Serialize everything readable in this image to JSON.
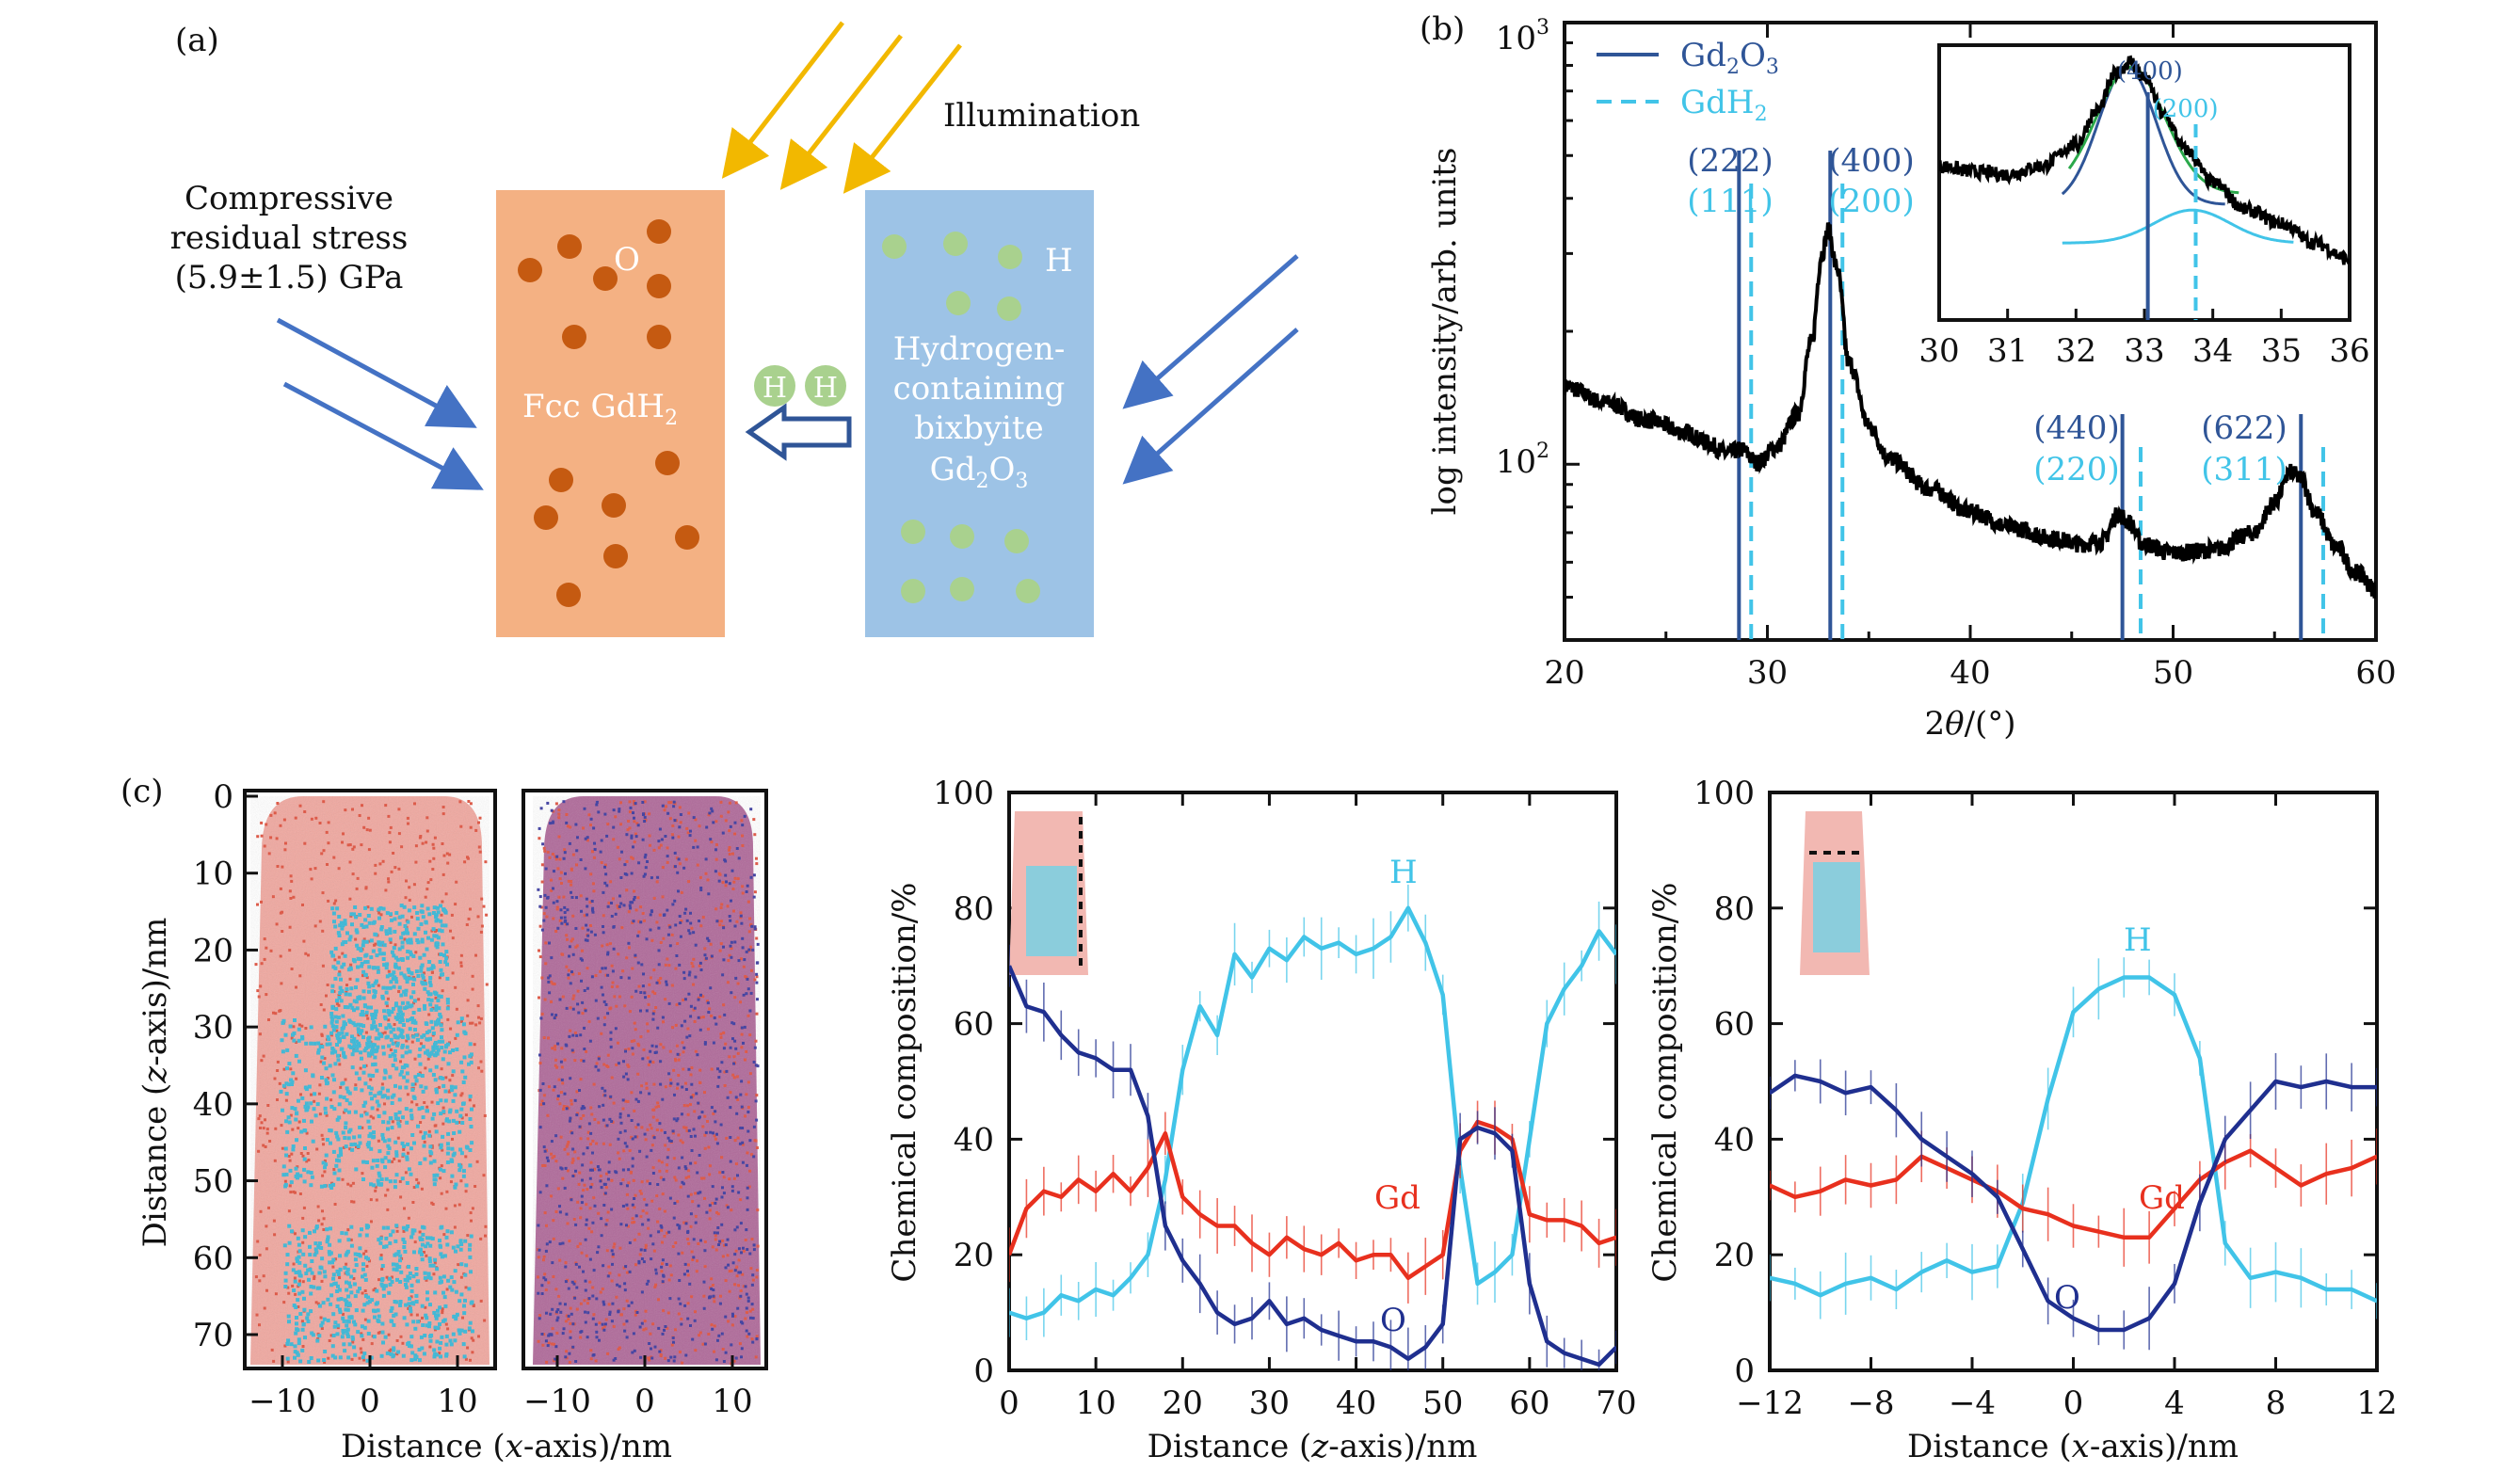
{
  "panel_a": {
    "label": "(a)",
    "illumination": "Illumination",
    "stress_line1": "Compressive",
    "stress_line2": "residual stress",
    "stress_line3": "(5.9±1.5) GPa",
    "left_box_O": "O",
    "left_box_label": "Fcc GdH",
    "left_box_sub": "2",
    "right_box_H": "H",
    "right_box_line1": "Hydrogen-",
    "right_box_line2": "containing",
    "right_box_line3": "bixbyite",
    "right_box_line4_main": "Gd",
    "right_box_line4_sub1": "2",
    "right_box_line4_mid": "O",
    "right_box_line4_sub2": "3",
    "h_atom": "H",
    "colors": {
      "gdh2_box": "#f4b183",
      "gd2o3_box": "#9dc3e6",
      "o_atom": "#c55a11",
      "h_atom": "#a9d18e",
      "arrow_yellow": "#f2b800",
      "arrow_blue": "#4472c4"
    }
  },
  "panel_b": {
    "label": "(b)",
    "legend": [
      {
        "main": "Gd",
        "sub1": "2",
        "mid": "O",
        "sub2": "3",
        "style": "solid",
        "color": "#2f5597"
      },
      {
        "main": "GdH",
        "sub1": "2",
        "mid": "",
        "sub2": "",
        "style": "dashed",
        "color": "#41c4e8"
      }
    ],
    "xlabel_pre": "2",
    "xlabel_theta": "θ",
    "xlabel_post": "/(°)",
    "ylabel": "log intensity/arb. units",
    "ytick_1e3": "10",
    "ytick_1e3_exp": "3",
    "ytick_1e2": "10",
    "ytick_1e2_exp": "2",
    "peaks": [
      {
        "gd2o3": "(222)",
        "gdh2": "(111)"
      },
      {
        "gd2o3": "(400)",
        "gdh2": "(200)"
      },
      {
        "gd2o3": "(440)",
        "gdh2": "(220)"
      },
      {
        "gd2o3": "(622)",
        "gdh2": "(311)"
      }
    ],
    "inset_labels": {
      "gd2o3": "(400)",
      "gdh2": "(200)"
    }
  },
  "panel_c": {
    "label": "(c)",
    "map_ylabel_pre": "Distance (",
    "map_ylabel_axis": "z",
    "map_ylabel_post": "-axis)/nm",
    "map_xlabel_pre": "Distance (",
    "map_xlabel_axis": "x",
    "map_xlabel_post": "-axis)/nm",
    "prof_ylabel": "Chemical composition/%",
    "prof1_xlabel_pre": "Distance (",
    "prof1_xlabel_axis": "z",
    "prof1_xlabel_post": "-axis)/nm",
    "prof2_xlabel_pre": "Distance (",
    "prof2_xlabel_axis": "x",
    "prof2_xlabel_post": "-axis)/nm",
    "label_H": "H",
    "label_Gd": "Gd",
    "label_O": "O",
    "colors": {
      "H": "#41c4e8",
      "Gd": "#e8301e",
      "O": "#1f2f8f"
    }
  },
  "chart_data": [
    {
      "type": "line",
      "id": "xrd",
      "x": [
        20,
        22,
        24,
        26,
        27,
        28,
        28.7,
        29.5,
        30.5,
        31.5,
        32.2,
        32.7,
        33.0,
        33.4,
        34.0,
        35,
        36,
        38,
        40,
        42,
        44,
        45.5,
        46.5,
        47.3,
        47.8,
        48.5,
        50,
        52,
        54,
        55,
        55.8,
        56.3,
        57,
        58,
        59,
        60
      ],
      "y": [
        150,
        138,
        126,
        118,
        112,
        106,
        108,
        101,
        110,
        130,
        190,
        300,
        340,
        280,
        170,
        122,
        103,
        88,
        78,
        72,
        68,
        66,
        67,
        77,
        74,
        66,
        63,
        64,
        70,
        82,
        96,
        93,
        78,
        65,
        57,
        52
      ],
      "xlim": [
        20,
        60
      ],
      "ylim": [
        40,
        1000
      ],
      "yscale": "log",
      "xticks": [
        20,
        30,
        40,
        50,
        60
      ],
      "gd2o3_lines": [
        28.6,
        33.1,
        47.5,
        56.3
      ],
      "gdh2_lines": [
        29.2,
        33.7,
        48.4,
        57.4
      ]
    },
    {
      "type": "line",
      "id": "xrd-inset",
      "x": [
        30,
        30.5,
        31,
        31.5,
        32,
        32.3,
        32.6,
        32.8,
        33.0,
        33.3,
        33.6,
        34,
        34.5,
        35,
        35.5,
        36
      ],
      "y": [
        0.56,
        0.54,
        0.53,
        0.56,
        0.64,
        0.76,
        0.9,
        0.94,
        0.88,
        0.74,
        0.62,
        0.5,
        0.4,
        0.35,
        0.28,
        0.22
      ],
      "xlim": [
        30,
        36
      ],
      "ylim": [
        0,
        1
      ],
      "xticks": [
        30,
        31,
        32,
        33,
        34,
        35,
        36
      ]
    },
    {
      "type": "line",
      "id": "z-profile",
      "x": [
        0,
        2,
        4,
        6,
        8,
        10,
        12,
        14,
        16,
        18,
        20,
        22,
        24,
        26,
        28,
        30,
        32,
        34,
        36,
        38,
        40,
        42,
        44,
        46,
        48,
        50,
        52,
        54,
        56,
        58,
        60,
        62,
        64,
        66,
        68,
        70
      ],
      "series": [
        {
          "name": "H",
          "values": [
            10,
            9,
            10,
            13,
            12,
            14,
            13,
            16,
            20,
            33,
            52,
            63,
            58,
            72,
            68,
            73,
            71,
            75,
            73,
            74,
            72,
            73,
            75,
            80,
            74,
            65,
            35,
            15,
            17,
            20,
            40,
            60,
            66,
            70,
            76,
            72
          ]
        },
        {
          "name": "Gd",
          "values": [
            20,
            28,
            31,
            30,
            33,
            31,
            34,
            31,
            35,
            41,
            30,
            27,
            25,
            25,
            22,
            20,
            23,
            21,
            20,
            22,
            19,
            20,
            20,
            16,
            18,
            20,
            38,
            43,
            42,
            40,
            27,
            26,
            26,
            25,
            22,
            23
          ]
        },
        {
          "name": "O",
          "values": [
            70,
            63,
            62,
            58,
            55,
            54,
            52,
            52,
            44,
            25,
            19,
            15,
            10,
            8,
            9,
            12,
            8,
            9,
            7,
            6,
            5,
            5,
            4,
            2,
            4,
            8,
            40,
            42,
            41,
            38,
            15,
            5,
            3,
            2,
            1,
            4
          ]
        }
      ],
      "xlim": [
        0,
        70
      ],
      "ylim": [
        0,
        100
      ],
      "xticks": [
        0,
        10,
        20,
        30,
        40,
        50,
        60,
        70
      ],
      "yticks": [
        0,
        20,
        40,
        60,
        80,
        100
      ]
    },
    {
      "type": "line",
      "id": "x-profile",
      "x": [
        -12,
        -11,
        -10,
        -9,
        -8,
        -7,
        -6,
        -5,
        -4,
        -3,
        -2,
        -1,
        0,
        1,
        2,
        3,
        4,
        5,
        6,
        7,
        8,
        9,
        10,
        11,
        12
      ],
      "series": [
        {
          "name": "H",
          "values": [
            16,
            15,
            13,
            15,
            16,
            14,
            17,
            19,
            17,
            18,
            29,
            47,
            62,
            66,
            68,
            68,
            65,
            54,
            22,
            16,
            17,
            16,
            14,
            14,
            12
          ]
        },
        {
          "name": "Gd",
          "values": [
            32,
            30,
            31,
            33,
            32,
            33,
            37,
            35,
            33,
            31,
            28,
            27,
            25,
            24,
            23,
            23,
            28,
            33,
            36,
            38,
            35,
            32,
            34,
            35,
            37
          ]
        },
        {
          "name": "O",
          "values": [
            48,
            51,
            50,
            48,
            49,
            45,
            40,
            37,
            34,
            30,
            21,
            12,
            9,
            7,
            7,
            9,
            15,
            29,
            40,
            45,
            50,
            49,
            50,
            49,
            49
          ]
        }
      ],
      "xlim": [
        -12,
        12
      ],
      "ylim": [
        0,
        100
      ],
      "xticks": [
        -12,
        -8,
        -4,
        0,
        4,
        8,
        12
      ],
      "xtick_labels": [
        "−12",
        "−8",
        "−4",
        "0",
        "4",
        "8",
        "12"
      ],
      "yticks": [
        0,
        20,
        40,
        60,
        80,
        100
      ]
    }
  ],
  "map_axes": {
    "z_ticks": [
      0,
      10,
      20,
      30,
      40,
      50,
      60,
      70
    ],
    "x_ticks": [
      -10,
      0,
      10
    ],
    "x_tick_labels": [
      "−10",
      "0",
      "10"
    ]
  }
}
